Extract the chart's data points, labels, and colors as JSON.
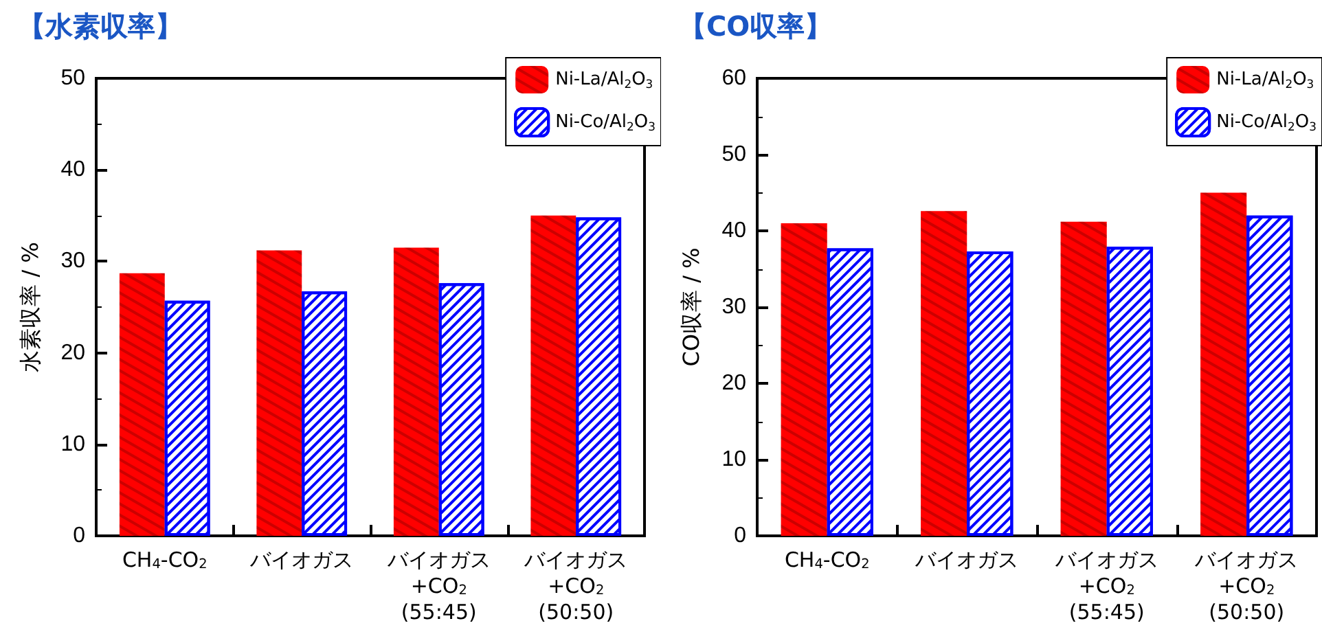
{
  "chart_data": [
    {
      "type": "bar",
      "title": "【水素収率】",
      "ylabel": "水素収率 / %",
      "categories": [
        "CH$_{4}$-CO$_{2}$",
        "バイオガス",
        "バイオガス\n+CO$_{2}$\n(55:45)",
        "バイオガス\n+CO$_{2}$\n(50:50)"
      ],
      "series": [
        {
          "name": "Ni-La/Al$_{2}$O$_{3}$",
          "color": "#ff0000",
          "values": [
            28.7,
            31.2,
            31.5,
            35.0
          ]
        },
        {
          "name": "Ni-Co/Al$_{2}$O$_{3}$",
          "color": "#0000ff",
          "values": [
            25.7,
            26.7,
            27.6,
            34.8
          ]
        }
      ],
      "ylim": [
        0,
        50
      ],
      "yticks": [
        0,
        10,
        20,
        30,
        40,
        50
      ],
      "legend": "top right"
    },
    {
      "type": "bar",
      "title": "【CO収率】",
      "ylabel": "CO収率 / %",
      "categories": [
        "CH$_{4}$-CO$_{2}$",
        "バイオガス",
        "バイオガス\n+CO$_{2}$\n(55:45)",
        "バイオガス\n+CO$_{2}$\n(50:50)"
      ],
      "series": [
        {
          "name": "Ni-La/Al$_{2}$O$_{3}$",
          "color": "#ff0000",
          "values": [
            41.0,
            42.6,
            41.2,
            45.0
          ]
        },
        {
          "name": "Ni-Co/Al$_{2}$O$_{3}$",
          "color": "#0000ff",
          "values": [
            37.7,
            37.3,
            37.9,
            42.0
          ]
        }
      ],
      "ylim": [
        0,
        60
      ],
      "yticks": [
        0,
        10,
        20,
        30,
        40,
        50,
        60
      ],
      "legend": "top right"
    }
  ]
}
